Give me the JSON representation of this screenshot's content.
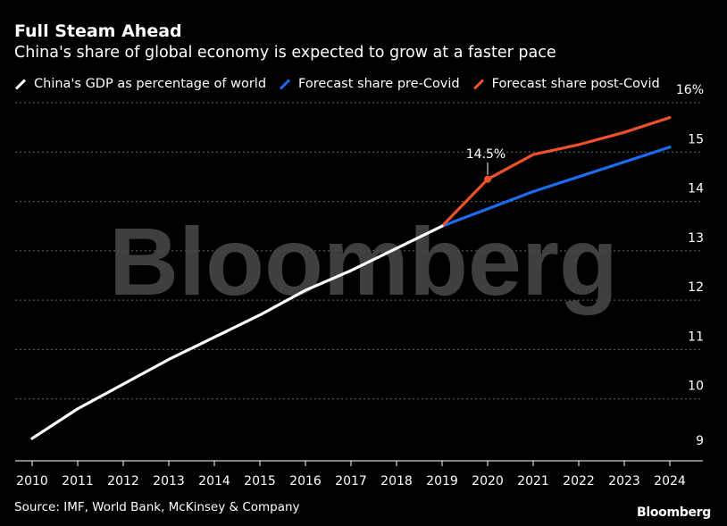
{
  "title": "Full Steam Ahead",
  "subtitle": "China's share of global economy is expected to grow at a faster pace",
  "source": "Source: IMF, World Bank, McKinsey & Company",
  "brand": "Bloomberg",
  "watermark": "Bloomberg",
  "colors": {
    "historical": "#ffffff",
    "pre_covid": "#1a6cf0",
    "post_covid": "#f0512a",
    "grid": "#666666"
  },
  "chart_data": {
    "type": "line",
    "title": "Full Steam Ahead",
    "subtitle": "China's share of global economy is expected to grow at a faster pace",
    "xlabel": "",
    "ylabel": "",
    "ylim": [
      9,
      16
    ],
    "y_ticks": [
      9,
      10,
      11,
      12,
      13,
      14,
      15,
      16
    ],
    "y_tick_labels": [
      "9",
      "10",
      "11",
      "12",
      "13",
      "14",
      "15",
      "16%"
    ],
    "x_ticks": [
      2010,
      2011,
      2012,
      2013,
      2014,
      2015,
      2016,
      2017,
      2018,
      2019,
      2020,
      2021,
      2022,
      2023,
      2024
    ],
    "grid": true,
    "legend_position": "top",
    "series": [
      {
        "name": "China's GDP as percentage of world",
        "color": "#ffffff",
        "x": [
          2010,
          2011,
          2012,
          2013,
          2014,
          2015,
          2016,
          2017,
          2018,
          2019
        ],
        "values": [
          9.2,
          9.8,
          10.3,
          10.8,
          11.25,
          11.7,
          12.2,
          12.6,
          13.05,
          13.5
        ]
      },
      {
        "name": "Forecast share pre-Covid",
        "color": "#1a6cf0",
        "x": [
          2019,
          2020,
          2021,
          2022,
          2023,
          2024
        ],
        "values": [
          13.5,
          13.85,
          14.2,
          14.5,
          14.8,
          15.1
        ]
      },
      {
        "name": "Forecast share post-Covid",
        "color": "#f0512a",
        "x": [
          2019,
          2020,
          2021,
          2022,
          2023,
          2024
        ],
        "values": [
          13.5,
          14.45,
          14.95,
          15.15,
          15.4,
          15.7
        ]
      }
    ],
    "annotations": [
      {
        "text": "14.5%",
        "x": 2020,
        "y": 14.45,
        "series": "Forecast share post-Covid"
      }
    ]
  }
}
